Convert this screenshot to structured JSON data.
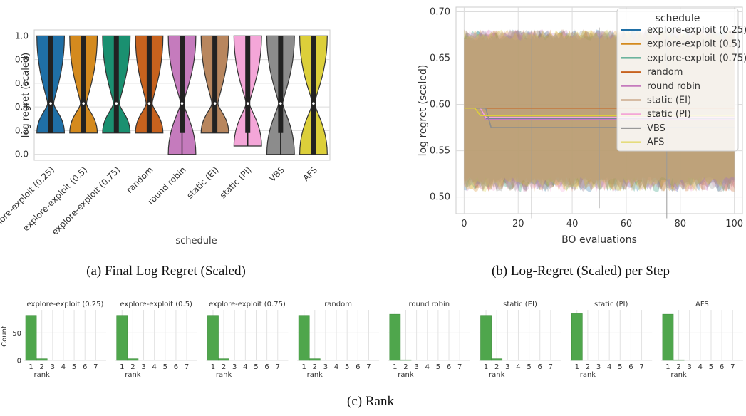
{
  "captions": {
    "a": "(a) Final Log Regret (Scaled)",
    "b": "(b) Log-Regret (Scaled) per Step",
    "c": "(c) Rank"
  },
  "colors": {
    "explore-exploit (0.25)": "#1f6fa6",
    "explore-exploit (0.5)": "#d48a1e",
    "explore-exploit (0.75)": "#1a9070",
    "random": "#c7621e",
    "round robin": "#c57bbd",
    "static (EI)": "#b8865e",
    "static (PI)": "#f4a6d8",
    "VBS": "#8c8c8c",
    "AFS": "#dccf3a",
    "rank_bar": "#4fa64c"
  },
  "chart_data": [
    {
      "type": "violin",
      "xlabel": "schedule",
      "ylabel": "log regret (scaled)",
      "ylim": [
        -0.05,
        1.05
      ],
      "yticks": [
        0.0,
        0.2,
        0.4,
        0.6,
        0.8,
        1.0
      ],
      "grid": true,
      "categories": [
        "explore-exploit (0.25)",
        "explore-exploit (0.5)",
        "explore-exploit (0.75)",
        "random",
        "round robin",
        "static (EI)",
        "static (PI)",
        "VBS",
        "AFS"
      ],
      "violins": [
        {
          "name": "explore-exploit (0.25)",
          "min": 0.18,
          "max": 1.0,
          "median": 0.43,
          "q1": 0.18,
          "q3": 1.0,
          "neck": 0.43,
          "neck_width": 0.22
        },
        {
          "name": "explore-exploit (0.5)",
          "min": 0.18,
          "max": 1.0,
          "median": 0.43,
          "q1": 0.18,
          "q3": 1.0,
          "neck": 0.43,
          "neck_width": 0.22
        },
        {
          "name": "explore-exploit (0.75)",
          "min": 0.18,
          "max": 1.0,
          "median": 0.43,
          "q1": 0.18,
          "q3": 1.0,
          "neck": 0.43,
          "neck_width": 0.22
        },
        {
          "name": "random",
          "min": 0.18,
          "max": 1.0,
          "median": 0.43,
          "q1": 0.18,
          "q3": 1.0,
          "neck": 0.43,
          "neck_width": 0.22
        },
        {
          "name": "round robin",
          "min": 0.0,
          "max": 1.0,
          "median": 0.43,
          "q1": 0.18,
          "q3": 1.0,
          "neck": 0.43,
          "neck_width": 0.1
        },
        {
          "name": "static (EI)",
          "min": 0.18,
          "max": 1.0,
          "median": 0.43,
          "q1": 0.18,
          "q3": 1.0,
          "neck": 0.43,
          "neck_width": 0.22
        },
        {
          "name": "static (PI)",
          "min": 0.07,
          "max": 1.0,
          "median": 0.43,
          "q1": 0.18,
          "q3": 1.0,
          "neck": 0.43,
          "neck_width": 0.12
        },
        {
          "name": "VBS",
          "min": 0.0,
          "max": 1.0,
          "median": 0.43,
          "q1": 0.18,
          "q3": 1.0,
          "neck": 0.43,
          "neck_width": 0.15
        },
        {
          "name": "AFS",
          "min": 0.0,
          "max": 1.0,
          "median": 0.43,
          "q1": 0.0,
          "q3": 1.0,
          "neck": 0.43,
          "neck_width": 0.08
        }
      ]
    },
    {
      "type": "line",
      "xlabel": "BO evaluations",
      "ylabel": "log regret (scaled)",
      "xlim": [
        -3,
        103
      ],
      "ylim": [
        0.482,
        0.705
      ],
      "xticks": [
        0,
        20,
        40,
        60,
        80,
        100
      ],
      "yticks": [
        0.5,
        0.55,
        0.6,
        0.65,
        0.7
      ],
      "grid": true,
      "band": {
        "lower": 0.515,
        "upper": 0.675
      },
      "legend": {
        "title": "schedule",
        "placement": "top-right"
      },
      "series": [
        {
          "name": "explore-exploit (0.25)",
          "start": 0.596,
          "drop_at": 8,
          "end": 0.584
        },
        {
          "name": "explore-exploit (0.5)",
          "start": 0.596,
          "drop_at": 8,
          "end": 0.585
        },
        {
          "name": "explore-exploit (0.75)",
          "start": 0.596,
          "drop_at": 8,
          "end": 0.585
        },
        {
          "name": "random",
          "start": 0.596,
          "drop_at": 8,
          "end": 0.596
        },
        {
          "name": "round robin",
          "start": 0.596,
          "drop_at": 8,
          "end": 0.584
        },
        {
          "name": "static (EI)",
          "start": 0.596,
          "drop_at": 8,
          "end": 0.586
        },
        {
          "name": "static (PI)",
          "start": 0.596,
          "drop_at": 8,
          "end": 0.586
        },
        {
          "name": "VBS",
          "start": 0.596,
          "drop_at": 10,
          "end": 0.575
        },
        {
          "name": "AFS",
          "start": 0.596,
          "drop_at": 6,
          "end": 0.588
        }
      ]
    },
    {
      "type": "bar",
      "facets": [
        "explore-exploit (0.25)",
        "explore-exploit (0.5)",
        "explore-exploit (0.75)",
        "random",
        "round robin",
        "static (EI)",
        "static (PI)",
        "AFS"
      ],
      "categories": [
        "1",
        "2",
        "3",
        "4",
        "5",
        "6",
        "7"
      ],
      "xlabel": "rank",
      "ylabel": "Count",
      "yticks": [
        0,
        50
      ],
      "ylim": [
        0,
        92
      ],
      "values": [
        [
          82,
          3,
          0,
          0,
          0,
          0,
          0
        ],
        [
          82,
          3,
          0,
          0,
          0,
          0,
          0
        ],
        [
          82,
          3,
          0,
          0,
          0,
          0,
          0
        ],
        [
          82,
          3,
          0,
          0,
          0,
          0,
          0
        ],
        [
          84,
          1,
          0,
          0,
          0,
          0,
          0
        ],
        [
          82,
          3,
          0,
          0,
          0,
          0,
          0
        ],
        [
          85,
          0,
          0,
          0,
          0,
          0,
          0
        ],
        [
          84,
          1,
          0,
          0,
          0,
          0,
          0
        ]
      ]
    }
  ]
}
